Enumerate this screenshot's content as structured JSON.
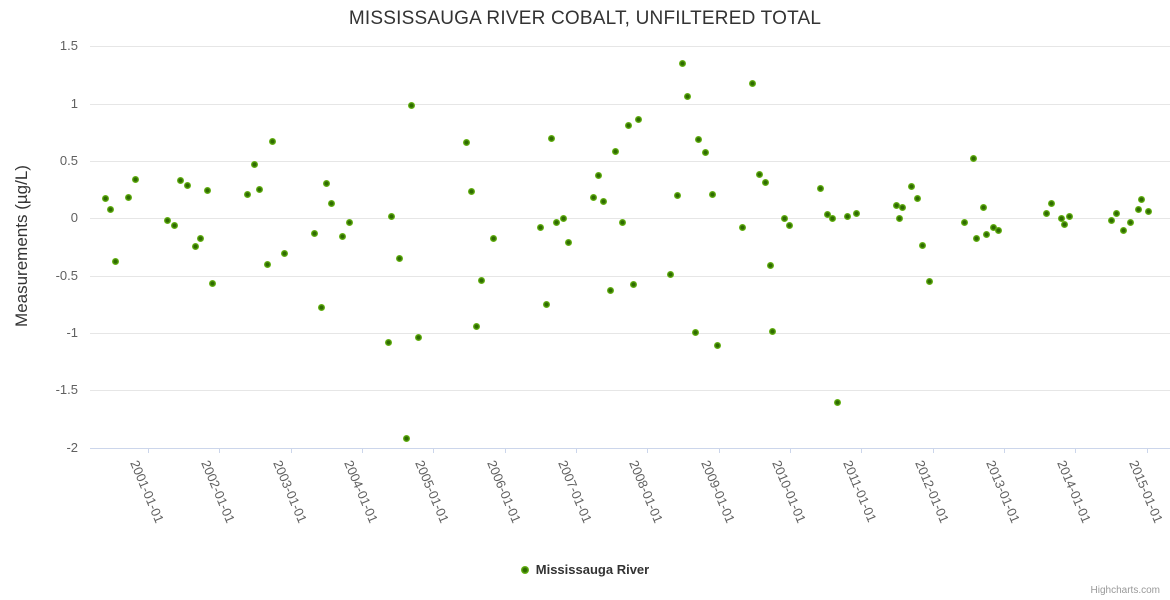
{
  "chart": {
    "title": "MISSISSAUGA RIVER COBALT, UNFILTERED TOTAL",
    "y_axis_title": "Measurements (µg/L)",
    "legend_label": "Mississauga River",
    "credit": "Highcharts.com"
  },
  "chart_data": {
    "type": "scatter",
    "title": "MISSISSAUGA RIVER COBALT, UNFILTERED TOTAL",
    "xlabel": "",
    "ylabel": "Measurements (µg/L)",
    "ylim": [
      -2,
      1.5
    ],
    "xlim_decimal_years": [
      2000.19,
      2015.33
    ],
    "grid": true,
    "legend_position": "bottom-center",
    "x_format": "decimal-year",
    "x_tick_labels": [
      "2001-01-01",
      "2002-01-01",
      "2003-01-01",
      "2004-01-01",
      "2005-01-01",
      "2006-01-01",
      "2007-01-01",
      "2008-01-01",
      "2009-01-01",
      "2010-01-01",
      "2011-01-01",
      "2012-01-01",
      "2013-01-01",
      "2014-01-01",
      "2015-01-01"
    ],
    "y_tick_labels": [
      "1.5",
      "1",
      "0.5",
      "0",
      "-0.5",
      "-1",
      "-1.5",
      "-2"
    ],
    "grid_color": "#e6e6e6",
    "axis_line_color": "#ccd6eb",
    "marker_color": "#6cb41c",
    "marker_center_color": "#2e6b00",
    "series": [
      {
        "name": "Mississauga River",
        "points": [
          [
            2000.4,
            0.17
          ],
          [
            2000.47,
            0.08
          ],
          [
            2000.55,
            -0.38
          ],
          [
            2000.72,
            0.18
          ],
          [
            2000.82,
            0.34
          ],
          [
            2001.28,
            -0.02
          ],
          [
            2001.37,
            -0.06
          ],
          [
            2001.46,
            0.33
          ],
          [
            2001.55,
            0.29
          ],
          [
            2001.66,
            -0.25
          ],
          [
            2001.73,
            -0.18
          ],
          [
            2001.83,
            0.24
          ],
          [
            2001.9,
            -0.57
          ],
          [
            2002.4,
            0.21
          ],
          [
            2002.49,
            0.47
          ],
          [
            2002.56,
            0.25
          ],
          [
            2002.67,
            -0.4
          ],
          [
            2002.74,
            0.67
          ],
          [
            2002.91,
            -0.31
          ],
          [
            2003.34,
            -0.13
          ],
          [
            2003.43,
            -0.78
          ],
          [
            2003.5,
            0.3
          ],
          [
            2003.57,
            0.13
          ],
          [
            2003.72,
            -0.16
          ],
          [
            2003.82,
            -0.04
          ],
          [
            2004.37,
            -1.08
          ],
          [
            2004.41,
            0.02
          ],
          [
            2004.53,
            -0.35
          ],
          [
            2004.62,
            -1.92
          ],
          [
            2004.7,
            0.98
          ],
          [
            2004.79,
            -1.04
          ],
          [
            2005.46,
            0.66
          ],
          [
            2005.53,
            0.23
          ],
          [
            2005.61,
            -0.94
          ],
          [
            2005.68,
            -0.54
          ],
          [
            2005.84,
            -0.18
          ],
          [
            2006.5,
            -0.08
          ],
          [
            2006.58,
            -0.75
          ],
          [
            2006.66,
            0.7
          ],
          [
            2006.73,
            -0.04
          ],
          [
            2006.82,
            0.0
          ],
          [
            2006.9,
            -0.21
          ],
          [
            2007.24,
            0.18
          ],
          [
            2007.31,
            0.37
          ],
          [
            2007.38,
            0.15
          ],
          [
            2007.48,
            -0.63
          ],
          [
            2007.56,
            0.58
          ],
          [
            2007.65,
            -0.04
          ],
          [
            2007.73,
            0.81
          ],
          [
            2007.81,
            -0.58
          ],
          [
            2007.88,
            0.86
          ],
          [
            2008.33,
            -0.49
          ],
          [
            2008.43,
            0.2
          ],
          [
            2008.49,
            1.35
          ],
          [
            2008.56,
            1.06
          ],
          [
            2008.67,
            -1.0
          ],
          [
            2008.72,
            0.69
          ],
          [
            2008.82,
            0.57
          ],
          [
            2008.91,
            0.21
          ],
          [
            2008.98,
            -1.11
          ],
          [
            2009.33,
            -0.08
          ],
          [
            2009.47,
            1.18
          ],
          [
            2009.57,
            0.38
          ],
          [
            2009.66,
            0.31
          ],
          [
            2009.73,
            -0.41
          ],
          [
            2009.76,
            -0.99
          ],
          [
            2009.93,
            0.0
          ],
          [
            2009.99,
            -0.06
          ],
          [
            2010.43,
            0.26
          ],
          [
            2010.53,
            0.03
          ],
          [
            2010.59,
            0.0
          ],
          [
            2010.66,
            -1.61
          ],
          [
            2010.81,
            0.02
          ],
          [
            2010.93,
            0.04
          ],
          [
            2011.49,
            0.11
          ],
          [
            2011.54,
            0.0
          ],
          [
            2011.58,
            0.09
          ],
          [
            2011.7,
            0.28
          ],
          [
            2011.79,
            0.17
          ],
          [
            2011.86,
            -0.24
          ],
          [
            2011.95,
            -0.55
          ],
          [
            2012.45,
            -0.04
          ],
          [
            2012.57,
            0.52
          ],
          [
            2012.62,
            -0.18
          ],
          [
            2012.71,
            0.09
          ],
          [
            2012.76,
            -0.14
          ],
          [
            2012.85,
            -0.08
          ],
          [
            2012.92,
            -0.11
          ],
          [
            2013.6,
            0.04
          ],
          [
            2013.66,
            0.13
          ],
          [
            2013.8,
            0.0
          ],
          [
            2013.85,
            -0.05
          ],
          [
            2013.92,
            0.02
          ],
          [
            2014.51,
            -0.02
          ],
          [
            2014.58,
            0.04
          ],
          [
            2014.67,
            -0.11
          ],
          [
            2014.78,
            -0.04
          ],
          [
            2014.88,
            0.08
          ],
          [
            2014.93,
            0.16
          ],
          [
            2015.03,
            0.06
          ]
        ]
      }
    ]
  }
}
